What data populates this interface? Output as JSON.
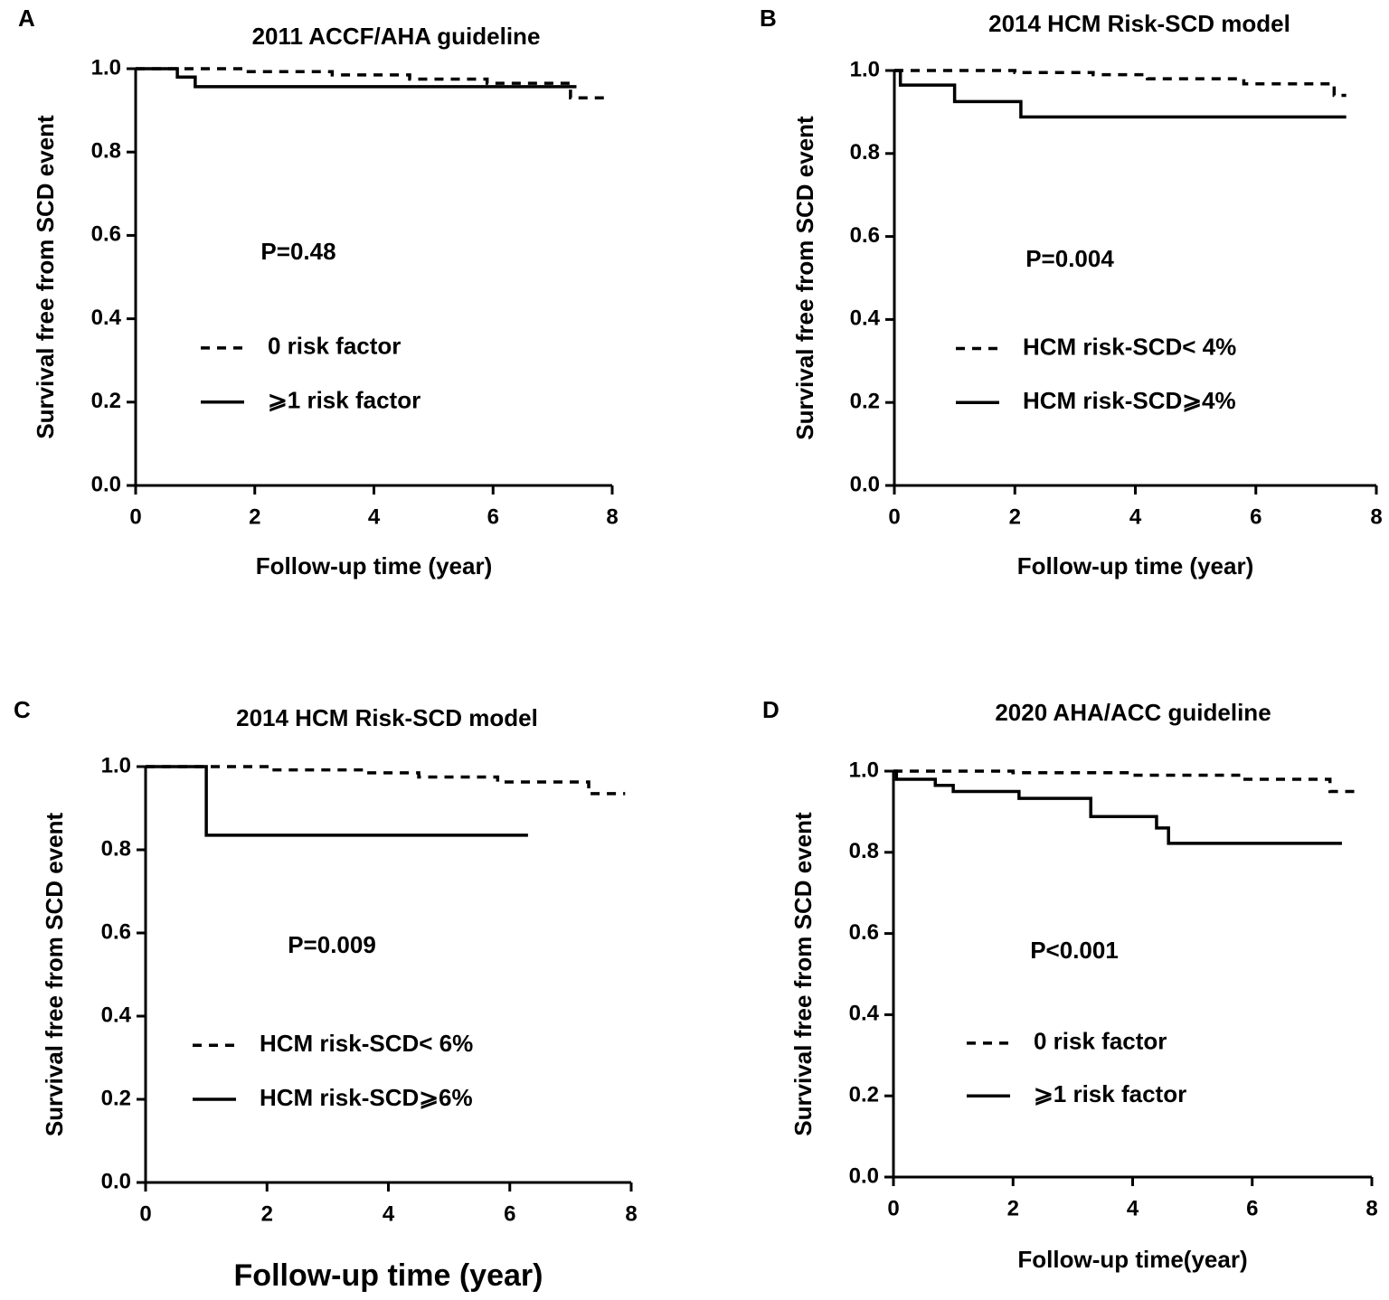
{
  "chart_data": [
    {
      "type": "step",
      "panel": "A",
      "title": "2011  ACCF/AHA guideline",
      "xlabel": "Follow-up time (year)",
      "ylabel": "Survival free from SCD event",
      "annotation": "P=0.48",
      "xlim": [
        0,
        8
      ],
      "xticks": [
        0,
        2,
        4,
        6,
        8
      ],
      "ylim": [
        0,
        1
      ],
      "yticks": [
        {
          "value": 0,
          "label": "0.0"
        },
        0.2,
        0.4,
        0.6,
        0.8,
        {
          "value": 1,
          "label": "1.0"
        }
      ],
      "series": [
        {
          "name": "0 risk factor",
          "color": "#000000",
          "line_style": "dashed",
          "x": [
            0,
            1.8,
            3.3,
            4.6,
            5.9,
            7.3,
            7.9
          ],
          "values": [
            1,
            0.993,
            0.985,
            0.975,
            0.965,
            0.93,
            0.93
          ]
        },
        {
          "name": "⩾1 risk factor",
          "color": "#000000",
          "line_style": "solid",
          "x": [
            0,
            0.7,
            1.0,
            7.4
          ],
          "values": [
            1,
            0.98,
            0.957,
            0.957
          ]
        }
      ]
    },
    {
      "type": "step",
      "panel": "B",
      "title": "2014 HCM Risk-SCD model",
      "xlabel": "Follow-up time (year)",
      "ylabel": "Survival free from SCD event",
      "annotation": "P=0.004",
      "xlim": [
        0,
        8
      ],
      "xticks": [
        0,
        2,
        4,
        6,
        8
      ],
      "ylim": [
        0,
        1
      ],
      "yticks": [
        {
          "value": 0,
          "label": "0.0"
        },
        0.2,
        0.4,
        0.6,
        0.8,
        {
          "value": 1,
          "label": "1.0"
        }
      ],
      "series": [
        {
          "name": "HCM risk-SCD< 4%",
          "color": "#000000",
          "line_style": "dashed",
          "x": [
            0,
            2.0,
            3.3,
            4.2,
            5.8,
            7.3,
            7.5
          ],
          "values": [
            1,
            0.995,
            0.99,
            0.98,
            0.968,
            0.94,
            0.94
          ]
        },
        {
          "name": "HCM risk-SCD⩾4%",
          "color": "#000000",
          "line_style": "solid",
          "x": [
            0,
            0.1,
            1.0,
            2.1,
            7.5
          ],
          "values": [
            1,
            0.965,
            0.925,
            0.888,
            0.888
          ]
        }
      ]
    },
    {
      "type": "step",
      "panel": "C",
      "title": "2014 HCM Risk-SCD model",
      "xlabel": "Follow-up time (year)",
      "ylabel": "Survival free from SCD event",
      "annotation": "P=0.009",
      "xlim": [
        0,
        8
      ],
      "xticks": [
        0,
        2,
        4,
        6,
        8
      ],
      "ylim": [
        0,
        1
      ],
      "yticks": [
        {
          "value": 0,
          "label": "0.0"
        },
        0.2,
        0.4,
        0.6,
        0.8,
        {
          "value": 1,
          "label": "1.0"
        }
      ],
      "series": [
        {
          "name": "HCM risk-SCD< 6%",
          "color": "#000000",
          "line_style": "dashed",
          "x": [
            0,
            2.0,
            3.6,
            4.5,
            5.8,
            7.3,
            7.9
          ],
          "values": [
            1,
            0.992,
            0.985,
            0.975,
            0.963,
            0.935,
            0.935
          ]
        },
        {
          "name": "HCM risk-SCD⩾6%",
          "color": "#000000",
          "line_style": "solid",
          "x": [
            0,
            1.0,
            6.3
          ],
          "values": [
            1,
            0.835,
            0.835
          ]
        }
      ]
    },
    {
      "type": "step",
      "panel": "D",
      "title": "2020 AHA/ACC guideline",
      "xlabel": "Follow-up time(year)",
      "ylabel": "Survival free from SCD event",
      "annotation": "P<0.001",
      "xlim": [
        0,
        8
      ],
      "xticks": [
        0,
        2,
        4,
        6,
        8
      ],
      "ylim": [
        0,
        1
      ],
      "yticks": [
        {
          "value": 0,
          "label": "0.0"
        },
        0.2,
        0.4,
        0.6,
        0.8,
        {
          "value": 1,
          "label": "1.0"
        }
      ],
      "series": [
        {
          "name": "0 risk factor",
          "color": "#000000",
          "line_style": "dashed",
          "x": [
            0,
            2.0,
            4.0,
            5.8,
            7.3,
            7.8
          ],
          "values": [
            1,
            0.996,
            0.99,
            0.98,
            0.95,
            0.95
          ]
        },
        {
          "name": "⩾1 risk factor",
          "color": "#000000",
          "line_style": "solid",
          "x": [
            0,
            0.05,
            0.7,
            1.0,
            2.1,
            3.3,
            4.4,
            4.6,
            7.5
          ],
          "values": [
            1,
            0.98,
            0.965,
            0.95,
            0.933,
            0.888,
            0.86,
            0.822,
            0.822
          ]
        }
      ]
    }
  ]
}
